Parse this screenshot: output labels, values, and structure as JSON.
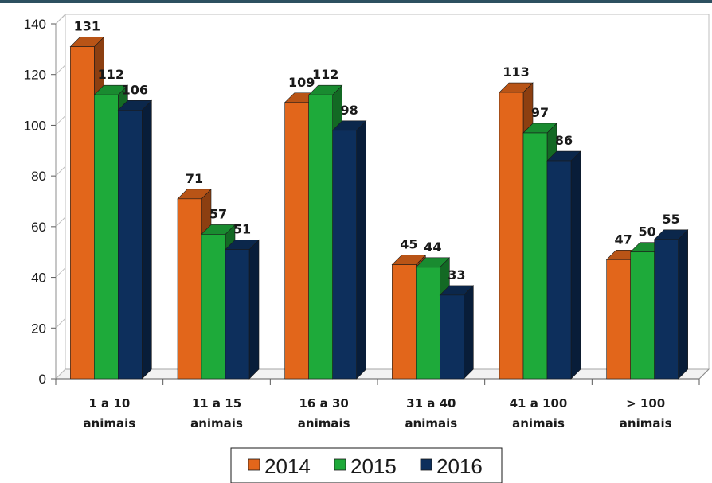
{
  "chart_data": {
    "type": "bar",
    "categories": [
      [
        "1 a 10",
        "animais"
      ],
      [
        "11 a 15",
        "animais"
      ],
      [
        "16 a 30",
        "animais"
      ],
      [
        "31 a 40",
        "animais"
      ],
      [
        "41 a 100",
        "animais"
      ],
      [
        "> 100",
        "animais"
      ]
    ],
    "series": [
      {
        "name": "2014",
        "color": "#e2661b",
        "values": [
          131,
          71,
          109,
          45,
          113,
          47
        ]
      },
      {
        "name": "2015",
        "color": "#1eaa3a",
        "values": [
          112,
          57,
          112,
          44,
          97,
          50
        ]
      },
      {
        "name": "2016",
        "color": "#0d2f5c",
        "values": [
          106,
          51,
          98,
          33,
          86,
          55
        ]
      }
    ],
    "title": "",
    "xlabel": "",
    "ylabel": "",
    "ylim": [
      0,
      140
    ],
    "yticks": [
      0,
      20,
      40,
      60,
      80,
      100,
      120,
      140
    ],
    "grid": false,
    "legend_position": "bottom",
    "style": "3d-clustered-bar"
  }
}
